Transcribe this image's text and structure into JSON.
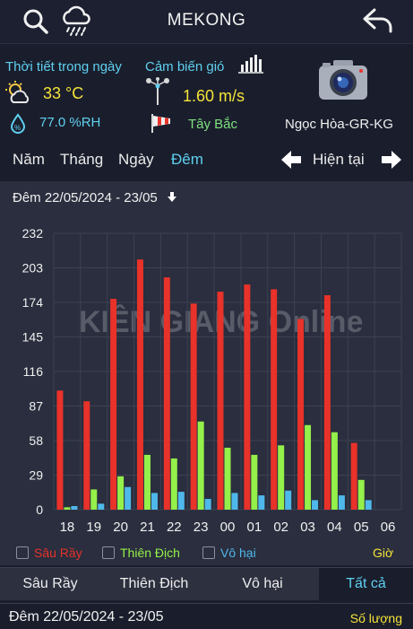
{
  "header": {
    "title": "MEKONG"
  },
  "weather": {
    "daily_label": "Thời tiết trong ngày",
    "temperature": "33 °C",
    "humidity": "77.0 %RH",
    "wind_label": "Cảm biến gió",
    "wind_speed": "1.60 m/s",
    "wind_direction": "Tây Bắc",
    "station": "Ngọc Hòa-GR-KG"
  },
  "period": {
    "tabs": [
      "Năm",
      "Tháng",
      "Ngày",
      "Đêm"
    ],
    "active": 3,
    "current_label": "Hiện tại"
  },
  "range_label": "Đêm 22/05/2024 - 23/05",
  "chart_data": {
    "type": "bar",
    "categories": [
      "18",
      "19",
      "20",
      "21",
      "22",
      "23",
      "00",
      "01",
      "02",
      "03",
      "04",
      "05",
      "06"
    ],
    "y_ticks": [
      0,
      29,
      58,
      87,
      116,
      145,
      174,
      203,
      232
    ],
    "ylim": [
      0,
      232
    ],
    "x_unit_label": "Giờ",
    "grid": true,
    "series": [
      {
        "name": "Sâu Rầy",
        "color": "#e8322a",
        "values": [
          100,
          91,
          177,
          210,
          195,
          173,
          183,
          189,
          185,
          160,
          180,
          56,
          0
        ]
      },
      {
        "name": "Thiên Địch",
        "color": "#94f04a",
        "values": [
          2,
          17,
          28,
          46,
          43,
          74,
          52,
          46,
          54,
          71,
          65,
          25,
          0
        ]
      },
      {
        "name": "Vô hại",
        "color": "#4fb8ea",
        "values": [
          3,
          5,
          19,
          14,
          15,
          9,
          14,
          12,
          16,
          8,
          12,
          8,
          0
        ]
      }
    ],
    "watermark": "KIÊN GIANG Online"
  },
  "legend_unit": "Giờ",
  "series_tabs": [
    "Sâu Rầy",
    "Thiên Địch",
    "Vô hại",
    "Tất cả"
  ],
  "series_active": 3,
  "footer": {
    "range": "Đêm 22/05/2024 - 23/05",
    "right_label": "Số lượng"
  }
}
